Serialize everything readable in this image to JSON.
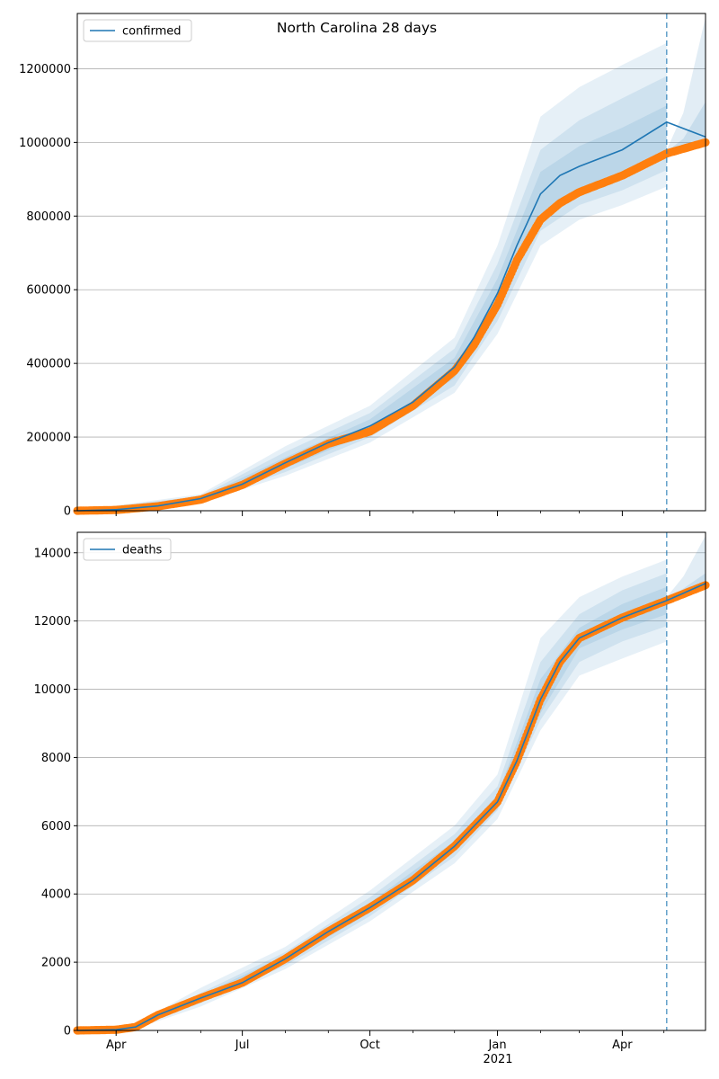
{
  "figure_title": "North Carolina 28 days",
  "x_ticks": [
    {
      "date": "2020-04-01",
      "label": "Apr"
    },
    {
      "date": "2020-07-01",
      "label": "Jul"
    },
    {
      "date": "2020-10-01",
      "label": "Oct"
    },
    {
      "date": "2021-01-01",
      "label": "Jan"
    },
    {
      "date": "2021-04-01",
      "label": "Apr"
    }
  ],
  "x_year_label": "2021",
  "colors": {
    "model": "#1f77b4",
    "observed": "#ff7f0e",
    "band": "#1f77b4",
    "grid": "#b0b0b0",
    "forecast_line": "#1f77b4"
  },
  "chart_data": [
    {
      "type": "line",
      "legend": "confirmed",
      "legend_position": "top-left",
      "grid": "horizontal",
      "xlim": [
        "2020-03-04",
        "2021-05-31"
      ],
      "ylim": [
        0,
        1350000
      ],
      "y_ticks": [
        0,
        200000,
        400000,
        600000,
        800000,
        1000000,
        1200000
      ],
      "forecast_start": "2021-05-03",
      "model_series": {
        "name": "confirmed",
        "x": [
          "2020-03-04",
          "2020-04-01",
          "2020-05-01",
          "2020-06-01",
          "2020-07-01",
          "2020-08-01",
          "2020-09-01",
          "2020-10-01",
          "2020-11-01",
          "2020-12-01",
          "2020-12-15",
          "2021-01-01",
          "2021-01-15",
          "2021-02-01",
          "2021-02-15",
          "2021-03-01",
          "2021-04-01",
          "2021-05-03",
          "2021-05-31"
        ],
        "y": [
          0,
          3000,
          13000,
          33000,
          72000,
          130000,
          185000,
          230000,
          295000,
          390000,
          470000,
          590000,
          720000,
          860000,
          910000,
          935000,
          980000,
          1055000,
          1015000
        ]
      },
      "observed_series": {
        "x": [
          "2020-03-04",
          "2020-04-01",
          "2020-05-01",
          "2020-06-01",
          "2020-07-01",
          "2020-08-01",
          "2020-09-01",
          "2020-10-01",
          "2020-11-01",
          "2020-12-01",
          "2020-12-15",
          "2021-01-01",
          "2021-01-15",
          "2021-02-01",
          "2021-02-15",
          "2021-03-01",
          "2021-04-01",
          "2021-05-03",
          "2021-05-31"
        ],
        "y": [
          0,
          2000,
          12000,
          30000,
          70000,
          128000,
          182000,
          215000,
          285000,
          380000,
          450000,
          560000,
          680000,
          790000,
          835000,
          865000,
          910000,
          970000,
          1000000
        ]
      },
      "bands": [
        {
          "x": [
            "2020-03-04",
            "2020-06-01",
            "2020-08-01",
            "2020-10-01",
            "2020-12-01",
            "2021-01-01",
            "2021-02-01",
            "2021-03-01",
            "2021-04-01",
            "2021-05-03"
          ],
          "upper": [
            0,
            45000,
            175000,
            285000,
            470000,
            720000,
            1070000,
            1150000,
            1210000,
            1270000
          ],
          "lower": [
            0,
            22000,
            95000,
            185000,
            320000,
            480000,
            720000,
            790000,
            830000,
            880000
          ]
        },
        {
          "x": [
            "2020-03-04",
            "2020-06-01",
            "2020-08-01",
            "2020-10-01",
            "2020-12-01",
            "2021-01-01",
            "2021-02-01",
            "2021-03-01",
            "2021-04-01",
            "2021-05-03"
          ],
          "upper": [
            0,
            40000,
            160000,
            265000,
            440000,
            670000,
            980000,
            1060000,
            1120000,
            1180000
          ],
          "lower": [
            0,
            26000,
            105000,
            200000,
            340000,
            515000,
            760000,
            830000,
            870000,
            925000
          ]
        },
        {
          "x": [
            "2020-03-04",
            "2020-06-01",
            "2020-08-01",
            "2020-10-01",
            "2020-12-01",
            "2021-01-01",
            "2021-02-01",
            "2021-03-01",
            "2021-04-01",
            "2021-05-03"
          ],
          "upper": [
            0,
            36000,
            145000,
            248000,
            415000,
            630000,
            920000,
            990000,
            1040000,
            1100000
          ],
          "lower": [
            0,
            29000,
            115000,
            212000,
            360000,
            548000,
            800000,
            865000,
            910000,
            960000
          ]
        }
      ],
      "projection_bands": [
        {
          "x": [
            "2021-05-03",
            "2021-05-15",
            "2021-05-31"
          ],
          "upper": [
            980000,
            1080000,
            1340000
          ],
          "lower": [
            960000,
            975000,
            990000
          ]
        },
        {
          "x": [
            "2021-05-03",
            "2021-05-15",
            "2021-05-31"
          ],
          "upper": [
            975000,
            1010000,
            1110000
          ],
          "lower": [
            965000,
            980000,
            995000
          ]
        }
      ]
    },
    {
      "type": "line",
      "legend": "deaths",
      "legend_position": "top-left",
      "grid": "horizontal",
      "xlim": [
        "2020-03-04",
        "2021-05-31"
      ],
      "ylim": [
        0,
        14600
      ],
      "y_ticks": [
        0,
        2000,
        4000,
        6000,
        8000,
        10000,
        12000,
        14000
      ],
      "forecast_start": "2021-05-03",
      "model_series": {
        "name": "deaths",
        "x": [
          "2020-03-04",
          "2020-04-01",
          "2020-04-15",
          "2020-05-01",
          "2020-06-01",
          "2020-07-01",
          "2020-08-01",
          "2020-09-01",
          "2020-10-01",
          "2020-11-01",
          "2020-12-01",
          "2021-01-01",
          "2021-01-15",
          "2021-02-01",
          "2021-02-15",
          "2021-03-01",
          "2021-04-01",
          "2021-05-03",
          "2021-05-31"
        ],
        "y": [
          0,
          20,
          100,
          450,
          950,
          1400,
          2100,
          2900,
          3600,
          4400,
          5400,
          6700,
          7900,
          9700,
          10800,
          11500,
          12100,
          12600,
          13100
        ]
      },
      "observed_series": {
        "x": [
          "2020-03-04",
          "2020-04-01",
          "2020-04-15",
          "2020-05-01",
          "2020-06-01",
          "2020-07-01",
          "2020-08-01",
          "2020-09-01",
          "2020-10-01",
          "2020-11-01",
          "2020-12-01",
          "2021-01-01",
          "2021-01-15",
          "2021-02-01",
          "2021-02-15",
          "2021-03-01",
          "2021-04-01",
          "2021-05-03",
          "2021-05-31"
        ],
        "y": [
          0,
          20,
          100,
          450,
          950,
          1400,
          2100,
          2900,
          3600,
          4400,
          5400,
          6700,
          7900,
          9700,
          10800,
          11500,
          12100,
          12600,
          13050
        ]
      },
      "bands": [
        {
          "x": [
            "2020-03-04",
            "2020-04-15",
            "2020-06-01",
            "2020-08-01",
            "2020-10-01",
            "2020-12-01",
            "2021-01-01",
            "2021-02-01",
            "2021-03-01",
            "2021-04-01",
            "2021-05-03"
          ],
          "upper": [
            0,
            200,
            1250,
            2450,
            4100,
            6000,
            7500,
            11500,
            12700,
            13300,
            13800
          ],
          "lower": [
            0,
            50,
            700,
            1800,
            3200,
            4900,
            6200,
            8800,
            10400,
            10900,
            11400
          ]
        },
        {
          "x": [
            "2020-03-04",
            "2020-04-15",
            "2020-06-01",
            "2020-08-01",
            "2020-10-01",
            "2020-12-01",
            "2021-01-01",
            "2021-02-01",
            "2021-03-01",
            "2021-04-01",
            "2021-05-03"
          ],
          "upper": [
            0,
            150,
            1100,
            2300,
            3900,
            5750,
            7150,
            10800,
            12200,
            12900,
            13400
          ],
          "lower": [
            0,
            70,
            800,
            1900,
            3350,
            5100,
            6450,
            9100,
            10800,
            11400,
            11850
          ]
        },
        {
          "x": [
            "2020-03-04",
            "2020-04-15",
            "2020-06-01",
            "2020-08-01",
            "2020-10-01",
            "2020-12-01",
            "2021-01-01",
            "2021-02-01",
            "2021-03-01",
            "2021-04-01",
            "2021-05-03"
          ],
          "upper": [
            0,
            125,
            1030,
            2200,
            3750,
            5550,
            6900,
            10300,
            11800,
            12500,
            13000
          ],
          "lower": [
            0,
            85,
            870,
            2000,
            3450,
            5250,
            6500,
            9300,
            11200,
            11750,
            12200
          ]
        }
      ],
      "projection_bands": [
        {
          "x": [
            "2021-05-03",
            "2021-05-15",
            "2021-05-31"
          ],
          "upper": [
            12700,
            13300,
            14500
          ],
          "lower": [
            12550,
            12750,
            13000
          ]
        },
        {
          "x": [
            "2021-05-03",
            "2021-05-15",
            "2021-05-31"
          ],
          "upper": [
            12650,
            12950,
            13400
          ],
          "lower": [
            12580,
            12800,
            13050
          ]
        }
      ]
    }
  ]
}
